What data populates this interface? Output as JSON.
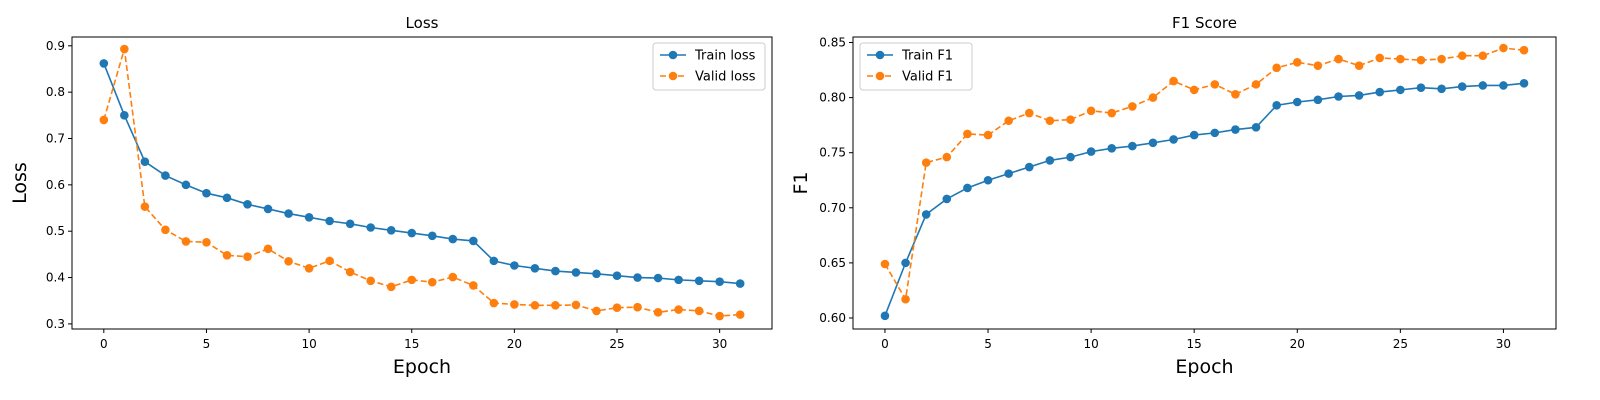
{
  "chart_data": [
    {
      "type": "line",
      "title": "Loss",
      "xlabel": "Epoch",
      "ylabel": "Loss",
      "x": [
        0,
        1,
        2,
        3,
        4,
        5,
        6,
        7,
        8,
        9,
        10,
        11,
        12,
        13,
        14,
        15,
        16,
        17,
        18,
        19,
        20,
        21,
        22,
        23,
        24,
        25,
        26,
        27,
        28,
        29,
        30,
        31
      ],
      "xlim": [
        -1.55,
        32.55
      ],
      "ylim": [
        0.289,
        0.919
      ],
      "xticks": [
        0,
        5,
        10,
        15,
        20,
        25,
        30
      ],
      "yticks": [
        0.3,
        0.4,
        0.5,
        0.6,
        0.7,
        0.8,
        0.9
      ],
      "legend_position": "upper right",
      "series": [
        {
          "name": "Train loss",
          "color": "#1f77b4",
          "style": "solid",
          "values": [
            0.862,
            0.75,
            0.65,
            0.62,
            0.6,
            0.582,
            0.572,
            0.558,
            0.548,
            0.538,
            0.53,
            0.522,
            0.516,
            0.508,
            0.502,
            0.496,
            0.49,
            0.483,
            0.479,
            0.436,
            0.426,
            0.42,
            0.414,
            0.411,
            0.408,
            0.404,
            0.4,
            0.399,
            0.395,
            0.393,
            0.391,
            0.387
          ]
        },
        {
          "name": "Valid loss",
          "color": "#ff7f0e",
          "style": "dashed",
          "values": [
            0.74,
            0.893,
            0.553,
            0.503,
            0.478,
            0.476,
            0.448,
            0.445,
            0.462,
            0.435,
            0.42,
            0.436,
            0.412,
            0.393,
            0.38,
            0.395,
            0.39,
            0.401,
            0.383,
            0.345,
            0.342,
            0.34,
            0.34,
            0.341,
            0.328,
            0.335,
            0.336,
            0.325,
            0.331,
            0.328,
            0.317,
            0.32
          ]
        }
      ]
    },
    {
      "type": "line",
      "title": "F1 Score",
      "xlabel": "Epoch",
      "ylabel": "F1",
      "x": [
        0,
        1,
        2,
        3,
        4,
        5,
        6,
        7,
        8,
        9,
        10,
        11,
        12,
        13,
        14,
        15,
        16,
        17,
        18,
        19,
        20,
        21,
        22,
        23,
        24,
        25,
        26,
        27,
        28,
        29,
        30,
        31
      ],
      "xlim": [
        -1.55,
        32.55
      ],
      "ylim": [
        0.59,
        0.855
      ],
      "xticks": [
        0,
        5,
        10,
        15,
        20,
        25,
        30
      ],
      "yticks": [
        0.6,
        0.65,
        0.7,
        0.75,
        0.8,
        0.85
      ],
      "yticklabels": [
        "0.60",
        "0.65",
        "0.70",
        "0.75",
        "0.80",
        "0.85"
      ],
      "legend_position": "upper left",
      "series": [
        {
          "name": "Train F1",
          "color": "#1f77b4",
          "style": "solid",
          "values": [
            0.602,
            0.65,
            0.694,
            0.708,
            0.718,
            0.725,
            0.731,
            0.737,
            0.743,
            0.746,
            0.751,
            0.754,
            0.756,
            0.759,
            0.762,
            0.766,
            0.768,
            0.771,
            0.773,
            0.793,
            0.796,
            0.798,
            0.801,
            0.802,
            0.805,
            0.807,
            0.809,
            0.808,
            0.81,
            0.811,
            0.811,
            0.813
          ]
        },
        {
          "name": "Valid F1",
          "color": "#ff7f0e",
          "style": "dashed",
          "values": [
            0.649,
            0.617,
            0.741,
            0.746,
            0.767,
            0.766,
            0.779,
            0.786,
            0.779,
            0.78,
            0.788,
            0.786,
            0.792,
            0.8,
            0.815,
            0.807,
            0.812,
            0.803,
            0.812,
            0.827,
            0.832,
            0.829,
            0.835,
            0.829,
            0.836,
            0.835,
            0.834,
            0.835,
            0.838,
            0.838,
            0.845,
            0.843
          ]
        }
      ]
    }
  ]
}
